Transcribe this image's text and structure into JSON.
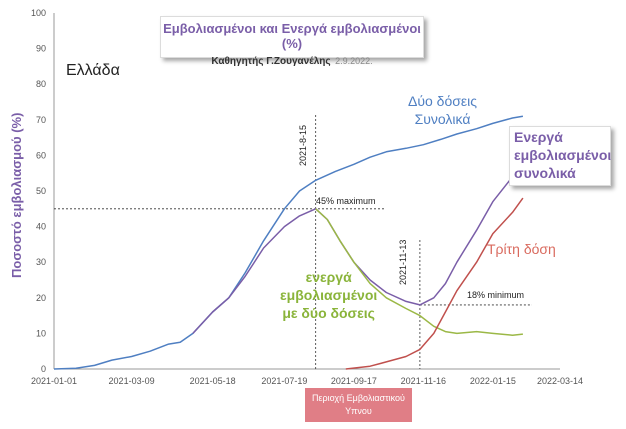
{
  "chart_data": {
    "type": "line",
    "title": "Εμβολιασμένοι και Ενεργά εμβολιασμένοι (%)",
    "subtitle": "Καθηγητής Γ.Ζουγανέλης",
    "subtitle_date": "2.9.2022.",
    "country_label": "Ελλάδα",
    "ylabel": "Ποσοστό εμβολιασμού (%)",
    "xlabel": "",
    "ylim": [
      0,
      100
    ],
    "yticks": [
      "0",
      "10",
      "20",
      "30",
      "40",
      "50",
      "60",
      "70",
      "80",
      "90",
      "100"
    ],
    "xlim": [
      "2021-01-01",
      "2022-03-14"
    ],
    "xticks": [
      "2021-01-01",
      "2021-03-09",
      "2021-05-18",
      "2021-07-19",
      "2021-09-17",
      "2021-11-16",
      "2022-01-15",
      "2022-03-14"
    ],
    "grid": false,
    "series": [
      {
        "name": "Δύο δόσεις Συνολικά",
        "name_line1": "Δύο δόσεις",
        "name_line2": "Συνολικά",
        "color": "#4f7fc2",
        "x": [
          "2021-01-01",
          "2021-01-20",
          "2021-02-05",
          "2021-02-20",
          "2021-03-09",
          "2021-03-25",
          "2021-04-10",
          "2021-04-20",
          "2021-05-01",
          "2021-05-18",
          "2021-06-01",
          "2021-06-15",
          "2021-07-01",
          "2021-07-19",
          "2021-08-01",
          "2021-08-15",
          "2021-09-01",
          "2021-09-17",
          "2021-10-01",
          "2021-10-15",
          "2021-11-01",
          "2021-11-16",
          "2021-12-01",
          "2021-12-15",
          "2022-01-01",
          "2022-01-15",
          "2022-02-01",
          "2022-02-10"
        ],
        "y": [
          0,
          0.2,
          1.0,
          2.5,
          3.5,
          5.0,
          7.0,
          7.5,
          10.0,
          16.0,
          20.0,
          27.0,
          36.0,
          45.0,
          50.0,
          53.0,
          55.5,
          57.5,
          59.5,
          61.0,
          62.0,
          63.0,
          64.5,
          66.0,
          67.5,
          69.0,
          70.5,
          71.0
        ]
      },
      {
        "name": "Ενεργά εμβολιασμένοι συνολικά",
        "name_line1": "Ενεργά",
        "name_line2": "εμβολιασμένοι",
        "name_line3": "συνολικά",
        "color": "#7a5ea8",
        "x": [
          "2021-05-01",
          "2021-05-18",
          "2021-06-01",
          "2021-06-15",
          "2021-07-01",
          "2021-07-19",
          "2021-08-01",
          "2021-08-15",
          "2021-08-25",
          "2021-09-05",
          "2021-09-17",
          "2021-10-01",
          "2021-10-15",
          "2021-11-01",
          "2021-11-13",
          "2021-11-25",
          "2021-12-05",
          "2021-12-15",
          "2022-01-01",
          "2022-01-15",
          "2022-02-01",
          "2022-02-10"
        ],
        "y": [
          10.0,
          16.0,
          20.0,
          26.0,
          34.0,
          40.0,
          43.0,
          45.0,
          42.0,
          36.0,
          30.0,
          25.0,
          21.5,
          19.0,
          18.0,
          20.0,
          24.0,
          30.0,
          39.0,
          47.0,
          54.0,
          57.0
        ]
      },
      {
        "name": "ενεργά εμβολιασμένοι με δύο δόσεις",
        "name_line1": "ενεργά",
        "name_line2": "εμβολιασμένοι",
        "name_line3": "με δύο δόσεις",
        "color": "#9bb846",
        "x": [
          "2021-08-15",
          "2021-08-25",
          "2021-09-05",
          "2021-09-17",
          "2021-10-01",
          "2021-10-15",
          "2021-11-01",
          "2021-11-13",
          "2021-11-25",
          "2021-12-05",
          "2021-12-15",
          "2022-01-01",
          "2022-01-15",
          "2022-02-01",
          "2022-02-10"
        ],
        "y": [
          45.0,
          42.0,
          36.0,
          30.0,
          24.0,
          20.0,
          17.0,
          15.0,
          12.0,
          10.5,
          10.0,
          10.5,
          10.0,
          9.5,
          9.8
        ]
      },
      {
        "name": "Τρίτη δόση",
        "color": "#c0504d",
        "x": [
          "2021-09-10",
          "2021-10-01",
          "2021-10-15",
          "2021-11-01",
          "2021-11-13",
          "2021-11-25",
          "2021-12-05",
          "2021-12-15",
          "2022-01-01",
          "2022-01-15",
          "2022-02-01",
          "2022-02-10"
        ],
        "y": [
          0.0,
          0.8,
          2.0,
          3.5,
          5.5,
          10.0,
          16.0,
          22.0,
          30.0,
          38.0,
          44.0,
          48.0
        ]
      }
    ],
    "annotations": {
      "peak_date": "2021-8-15",
      "peak_label": "45% maximum",
      "peak_value": 45,
      "min_date": "2021-11-13",
      "min_label": "18% minimum",
      "min_value": 18,
      "region_label_line1": "Περιοχή Εμβολιαστικού",
      "region_label_line2": "Υπνου"
    }
  }
}
